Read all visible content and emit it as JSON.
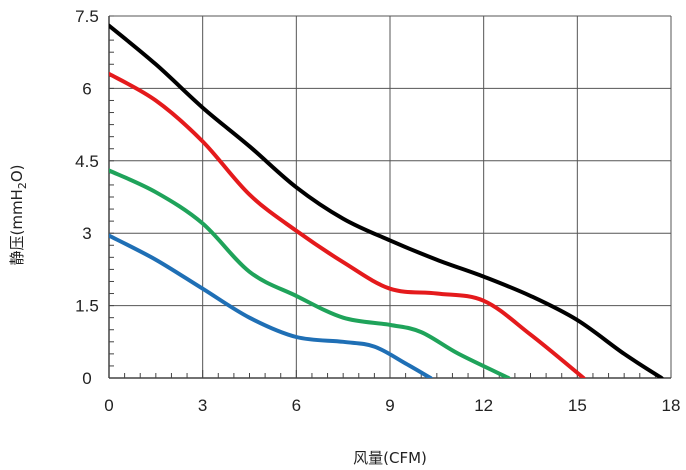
{
  "chart_data": {
    "type": "line",
    "title": "",
    "xlabel": "风量(CFM)",
    "ylabel": "静压(mmH2O)",
    "ylabel_parts": {
      "main": "静压(mmH",
      "sub": "2",
      "tail": "O)"
    },
    "xlim": [
      0,
      18
    ],
    "ylim": [
      0,
      7.5
    ],
    "x_ticks": [
      "0",
      "3",
      "6",
      "9",
      "12",
      "15",
      "18"
    ],
    "y_ticks": [
      "0",
      "1.5",
      "3",
      "4.5",
      "6",
      "7.5"
    ],
    "x_tick_values": [
      0,
      3,
      6,
      9,
      12,
      15,
      18
    ],
    "y_tick_values": [
      0,
      1.5,
      3,
      4.5,
      6,
      7.5
    ],
    "grid": true,
    "series": [
      {
        "color": "#000000",
        "points": [
          [
            0,
            7.3
          ],
          [
            1.5,
            6.5
          ],
          [
            3,
            5.6
          ],
          [
            4.5,
            4.8
          ],
          [
            6,
            3.95
          ],
          [
            7.5,
            3.3
          ],
          [
            9,
            2.85
          ],
          [
            10.5,
            2.45
          ],
          [
            12,
            2.1
          ],
          [
            13.5,
            1.7
          ],
          [
            15,
            1.2
          ],
          [
            16.5,
            0.5
          ],
          [
            17.7,
            0
          ]
        ]
      },
      {
        "color": "#e41a1c",
        "points": [
          [
            0,
            6.3
          ],
          [
            1.5,
            5.75
          ],
          [
            3,
            4.9
          ],
          [
            4.5,
            3.8
          ],
          [
            6,
            3.05
          ],
          [
            7.5,
            2.4
          ],
          [
            9,
            1.85
          ],
          [
            10.5,
            1.75
          ],
          [
            12,
            1.6
          ],
          [
            13.5,
            0.9
          ],
          [
            15.2,
            0
          ]
        ]
      },
      {
        "color": "#1fa35a",
        "points": [
          [
            0,
            4.3
          ],
          [
            1.5,
            3.85
          ],
          [
            3,
            3.2
          ],
          [
            4.5,
            2.2
          ],
          [
            6,
            1.7
          ],
          [
            7.5,
            1.25
          ],
          [
            9,
            1.1
          ],
          [
            10,
            0.95
          ],
          [
            11.2,
            0.5
          ],
          [
            12.8,
            0
          ]
        ]
      },
      {
        "color": "#1f6fb5",
        "points": [
          [
            0,
            2.95
          ],
          [
            1.5,
            2.45
          ],
          [
            3,
            1.85
          ],
          [
            4.5,
            1.25
          ],
          [
            6,
            0.85
          ],
          [
            7.5,
            0.75
          ],
          [
            8.5,
            0.65
          ],
          [
            9.5,
            0.3
          ],
          [
            10.3,
            0
          ]
        ]
      }
    ]
  }
}
